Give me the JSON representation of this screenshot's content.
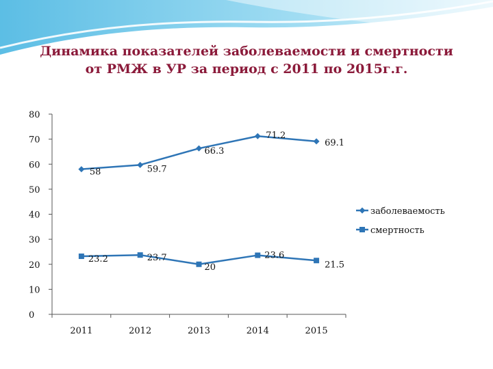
{
  "title": {
    "line1": "Динамика показателей заболеваемости и смертности",
    "line2": "от РМЖ в УР за период с 2011 по 2015г.г."
  },
  "colors": {
    "series": "#2e75b6",
    "title": "#8b1a3a",
    "wave": "#5bc0e4"
  },
  "chart_data": {
    "type": "line",
    "title": "Динамика показателей заболеваемости и смертности от РМЖ в УР за период с 2011 по 2015г.г.",
    "categories": [
      "2011",
      "2012",
      "2013",
      "2014",
      "2015"
    ],
    "ylim": [
      0,
      80
    ],
    "yticks": [
      0,
      10,
      20,
      30,
      40,
      50,
      60,
      70,
      80
    ],
    "ytick_labels": [
      "0",
      "10",
      "20",
      "30",
      "40",
      "50",
      "60",
      "70",
      "80"
    ],
    "grid": false,
    "legend": "right",
    "series": [
      {
        "name": "заболеваемость",
        "marker": "diamond",
        "values": [
          58,
          59.7,
          66.3,
          71.2,
          69.1
        ],
        "labels": [
          "58",
          "59.7",
          "66.3",
          "71.2",
          "69.1"
        ]
      },
      {
        "name": "смертность",
        "marker": "square",
        "values": [
          23.2,
          23.7,
          20,
          23.6,
          21.5
        ],
        "labels": [
          "23.2",
          "23.7",
          "20",
          "23.6",
          "21.5"
        ]
      }
    ]
  }
}
